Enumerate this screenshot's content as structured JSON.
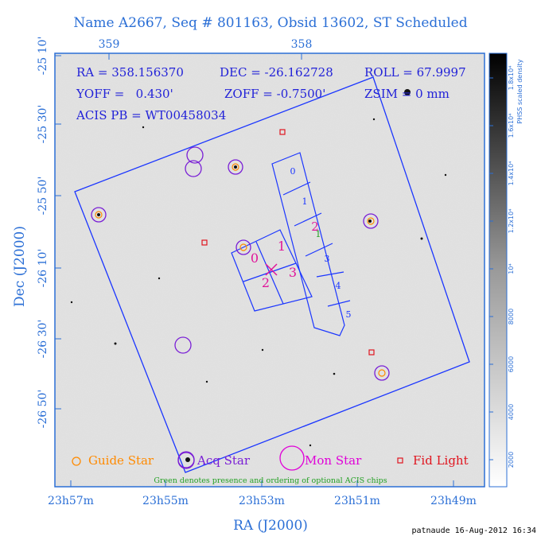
{
  "title": "Name A2667, Seq # 801163, Obsid 13602, ST Scheduled",
  "footer": "patnaude 16-Aug-2012 16:34",
  "colors": {
    "axis": "#2b6fd6",
    "field": "#1a35ff",
    "text_overlay": "#2222d8",
    "guide_star": "#ff8a00",
    "acq_star": "#7a1fd6",
    "mon_star": "#e000d8",
    "fid_light": "#e0141e",
    "optional_chip": "#22a022",
    "chip_label_magenta": "#e0149a"
  },
  "info": {
    "ra": "RA = 358.156370",
    "dec": "DEC = -26.162728",
    "roll": "ROLL = 67.9997",
    "yoff": "YOFF =   0.430'",
    "zoff": "ZOFF = -0.7500'",
    "zsim": "ZSIM = 0 mm",
    "acis_pb": "ACIS PB = WT00458034"
  },
  "chart_data": {
    "type": "scatter",
    "title": "Name A2667, Seq # 801163, Obsid 13602, ST Scheduled",
    "xlabel": "RA (J2000)",
    "ylabel": "Dec (J2000)",
    "x_ticks_bottom": [
      "23h57m",
      "23h55m",
      "23h53m",
      "23h51m",
      "23h49m"
    ],
    "x_ticks_top": [
      "359",
      "358"
    ],
    "y_ticks": [
      "-25 10'",
      "-25 30'",
      "-25 50'",
      "-26 10'",
      "-26 30'",
      "-26 50'"
    ],
    "colorbar": {
      "label": "PHSS scaled density",
      "ticks": [
        "2000",
        "4000",
        "6000",
        "8000",
        "10⁴",
        "1.2x10⁴",
        "1.4x10⁴",
        "1.6x10⁴",
        "1.8x10⁴"
      ]
    },
    "legend": {
      "placement": "bottom",
      "items": [
        "Guide Star",
        "Acq Star",
        "Mon Star",
        "Fid Light"
      ],
      "note": "Green denotes presence and ordering of optional ACIS chips"
    },
    "pointing": {
      "ra_deg": 358.15637,
      "dec_deg": -26.162728,
      "roll_deg": 67.9997
    },
    "chips": {
      "imaging": [
        "0",
        "1",
        "2",
        "3"
      ],
      "spectroscopy": [
        "0",
        "1",
        "2",
        "3",
        "4",
        "5"
      ],
      "optional_order": "1"
    }
  }
}
